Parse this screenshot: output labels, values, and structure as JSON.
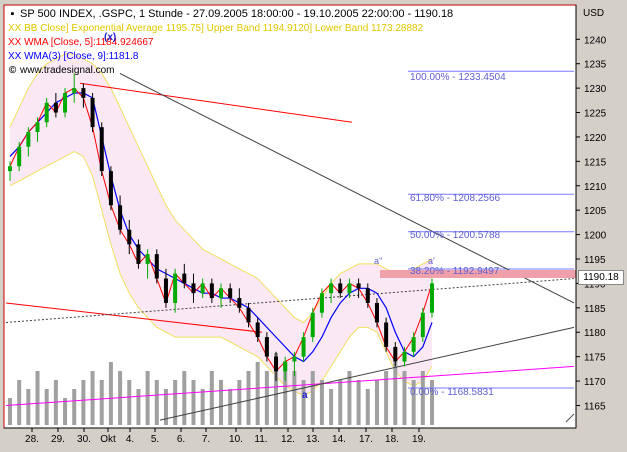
{
  "title": "SP 500 INDEX, .GSPC, 1 Stunde - 27.09.2005 18:00:00 - 19.10.2005 22:00:00 - 1190.18",
  "legend": {
    "bb": "XX BB Close] Exponential Average 1195.75] Upper Band 1194.9120] Lower Band 1173.28882",
    "wma5": "XX WMA [Close, 5]:1184.924667",
    "wma9": "XX WMA(3) [Close, 9]:1181.8",
    "source": "www.tradesignal.com"
  },
  "icons": {
    "bb": "x-icon",
    "wma5": "x-icon",
    "wma9": "x-icon",
    "source": "copyright-icon"
  },
  "colors": {
    "background": "#ffffff",
    "frame": "#c00000",
    "candle_up": "#00aa00",
    "candle_down": "#000000",
    "wma5": "#ff0000",
    "wma9": "#0000ff",
    "bollinger": "#f0e060",
    "band_fill": "#f8e0f0",
    "fib": "#7878ff",
    "fib_label": "#6060d0",
    "trend_red": "#ff0000",
    "trend_magenta": "#ff00ff",
    "trend_gray": "#404040",
    "volume": "#a0a0a0",
    "price_marker": "#f0a0a8",
    "label_blue": "#2020d0"
  },
  "currency": "USD",
  "current_price": "1190.18",
  "annotations": {
    "x": "(x)",
    "a": "a",
    "a_prime": "a'",
    "a_double_prime": "a''"
  },
  "fib_levels": [
    {
      "label": "100.00% - 1233.4504",
      "value": 1233.4504
    },
    {
      "label": "61.80% - 1208.2566",
      "value": 1208.2566
    },
    {
      "label": "50.00% - 1200.5788",
      "value": 1200.5788
    },
    {
      "label": "38.20% - 1192.9497",
      "value": 1192.9497
    },
    {
      "label": "0.00% - 1168.5831",
      "value": 1168.5831
    }
  ],
  "chart_data": {
    "type": "candlestick",
    "title": "SP 500 INDEX, .GSPC, 1 Stunde - 27.09.2005 18:00:00 - 19.10.2005 22:00:00 - 1190.18",
    "ylabel": "USD",
    "ylim": [
      1161,
      1246
    ],
    "y_ticks": [
      1165,
      1170,
      1175,
      1180,
      1185,
      1190,
      1195,
      1200,
      1205,
      1210,
      1215,
      1220,
      1225,
      1230,
      1235,
      1240
    ],
    "x_ticks": [
      "28.",
      "29.",
      "30.",
      "Okt",
      "4.",
      "5.",
      "6.",
      "7.",
      "10.",
      "11.",
      "12.",
      "13.",
      "14.",
      "17.",
      "18.",
      "19."
    ],
    "grid": false,
    "series": [
      {
        "name": "WMA 9",
        "values": [
          1216,
          1218,
          1221,
          1223,
          1225,
          1227,
          1228,
          1229,
          1229,
          1228,
          1220,
          1212,
          1205,
          1200,
          1197,
          1195,
          1193,
          1192,
          1191,
          1190,
          1189,
          1188,
          1188,
          1187,
          1187,
          1186,
          1185,
          1183,
          1181,
          1179,
          1177,
          1175,
          1174,
          1176,
          1179,
          1183,
          1186,
          1188,
          1189,
          1189,
          1188,
          1185,
          1180,
          1176,
          1175,
          1177,
          1182
        ]
      },
      {
        "name": "Bollinger Upper",
        "values": [
          1222,
          1226,
          1230,
          1233,
          1235,
          1236,
          1237,
          1237,
          1236,
          1235,
          1233,
          1230,
          1226,
          1222,
          1218,
          1214,
          1210,
          1206,
          1203,
          1201,
          1199,
          1197,
          1196,
          1195,
          1194,
          1193,
          1192,
          1191,
          1189,
          1187,
          1185,
          1183,
          1182,
          1184,
          1187,
          1190,
          1192,
          1193,
          1194,
          1194,
          1194,
          1193,
          1192,
          1192,
          1193,
          1194,
          1195
        ]
      },
      {
        "name": "Bollinger Lower",
        "values": [
          1210,
          1211,
          1212,
          1213,
          1214,
          1215,
          1216,
          1217,
          1216,
          1212,
          1205,
          1198,
          1192,
          1188,
          1185,
          1183,
          1181,
          1180,
          1179,
          1179,
          1179,
          1179,
          1179,
          1179,
          1178,
          1177,
          1176,
          1175,
          1173,
          1171,
          1169,
          1168,
          1167,
          1168,
          1170,
          1173,
          1176,
          1179,
          1181,
          1181,
          1180,
          1176,
          1172,
          1170,
          1169,
          1170,
          1173
        ]
      },
      {
        "name": "Volume",
        "values": [
          3,
          5,
          4,
          6,
          4,
          5,
          3,
          4,
          5,
          6,
          5,
          7,
          6,
          5,
          4,
          6,
          5,
          4,
          5,
          6,
          5,
          4,
          6,
          5,
          4,
          5,
          6,
          7,
          6,
          8,
          7,
          6,
          5,
          6,
          5,
          4,
          5,
          6,
          5,
          4,
          5,
          6,
          7,
          6,
          5,
          6,
          5
        ]
      }
    ],
    "candles": [
      [
        1213,
        1215,
        1211,
        1214
      ],
      [
        1214,
        1219,
        1213,
        1218
      ],
      [
        1218,
        1222,
        1216,
        1221
      ],
      [
        1221,
        1224,
        1219,
        1223
      ],
      [
        1223,
        1228,
        1222,
        1227
      ],
      [
        1227,
        1229,
        1224,
        1225
      ],
      [
        1225,
        1230,
        1224,
        1229
      ],
      [
        1229,
        1233,
        1227,
        1230
      ],
      [
        1230,
        1231,
        1226,
        1228
      ],
      [
        1228,
        1229,
        1221,
        1222
      ],
      [
        1222,
        1223,
        1212,
        1213
      ],
      [
        1213,
        1214,
        1205,
        1206
      ],
      [
        1206,
        1208,
        1200,
        1201
      ],
      [
        1201,
        1203,
        1196,
        1198
      ],
      [
        1198,
        1199,
        1193,
        1194
      ],
      [
        1194,
        1197,
        1191,
        1196
      ],
      [
        1196,
        1197,
        1190,
        1191
      ],
      [
        1191,
        1193,
        1185,
        1186
      ],
      [
        1186,
        1193,
        1184,
        1192
      ],
      [
        1192,
        1194,
        1189,
        1190
      ],
      [
        1190,
        1192,
        1186,
        1188
      ],
      [
        1188,
        1191,
        1187,
        1190
      ],
      [
        1190,
        1191,
        1186,
        1187
      ],
      [
        1187,
        1190,
        1185,
        1189
      ],
      [
        1189,
        1190,
        1186,
        1187
      ],
      [
        1187,
        1189,
        1184,
        1185
      ],
      [
        1185,
        1186,
        1181,
        1182
      ],
      [
        1182,
        1183,
        1178,
        1179
      ],
      [
        1179,
        1180,
        1174,
        1175
      ],
      [
        1175,
        1176,
        1170,
        1172
      ],
      [
        1172,
        1175,
        1170,
        1174
      ],
      [
        1174,
        1176,
        1171,
        1175
      ],
      [
        1175,
        1180,
        1174,
        1179
      ],
      [
        1179,
        1185,
        1178,
        1184
      ],
      [
        1184,
        1189,
        1183,
        1188
      ],
      [
        1188,
        1191,
        1186,
        1190
      ],
      [
        1190,
        1191,
        1187,
        1188
      ],
      [
        1188,
        1191,
        1187,
        1190
      ],
      [
        1190,
        1191,
        1187,
        1189
      ],
      [
        1189,
        1190,
        1185,
        1186
      ],
      [
        1186,
        1187,
        1181,
        1182
      ],
      [
        1182,
        1183,
        1176,
        1177
      ],
      [
        1177,
        1178,
        1173,
        1174
      ],
      [
        1174,
        1177,
        1173,
        1176
      ],
      [
        1176,
        1180,
        1175,
        1179
      ],
      [
        1179,
        1185,
        1178,
        1184
      ],
      [
        1184,
        1191,
        1183,
        1190
      ]
    ]
  }
}
